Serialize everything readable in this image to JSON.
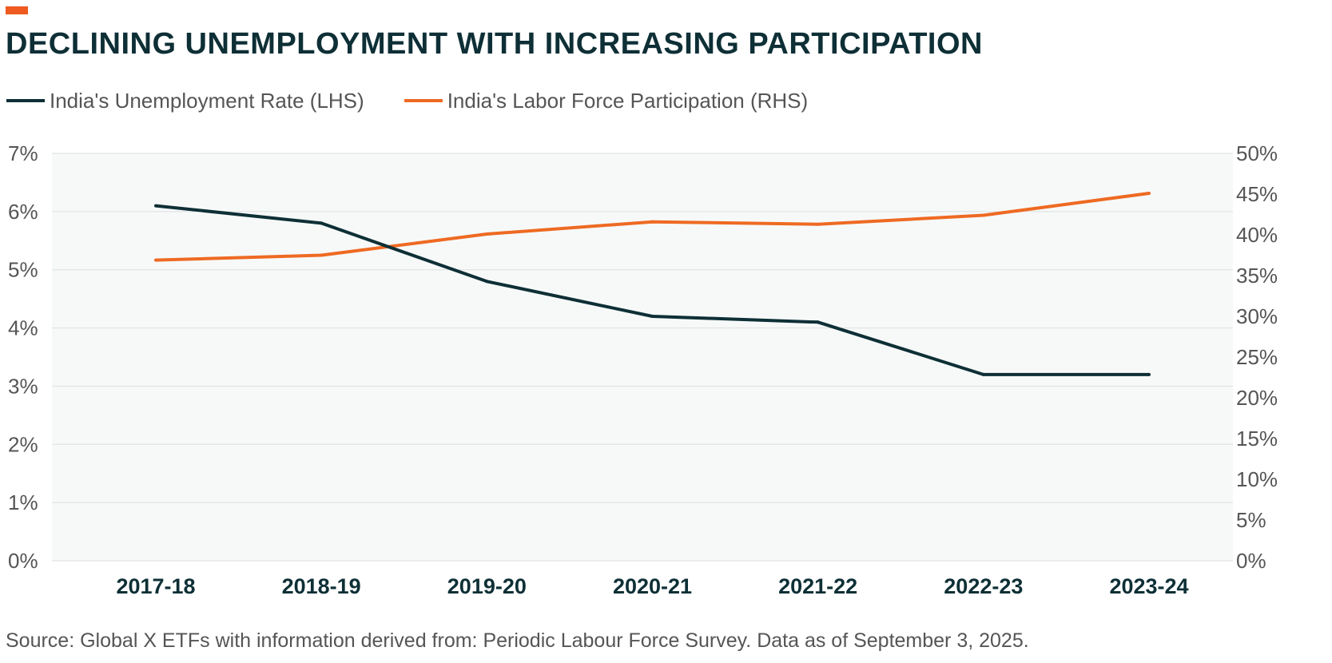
{
  "accent_color": "#ee5a1f",
  "title": "DECLINING UNEMPLOYMENT WITH INCREASING PARTICIPATION",
  "source": "Source: Global X ETFs with information derived from: Periodic Labour Force Survey. Data as of September 3, 2025.",
  "chart_data": {
    "type": "line",
    "title": "DECLINING UNEMPLOYMENT WITH INCREASING PARTICIPATION",
    "categories": [
      "2017-18",
      "2018-19",
      "2019-20",
      "2020-21",
      "2021-22",
      "2022-23",
      "2023-24"
    ],
    "series": [
      {
        "name": "India's Unemployment Rate (LHS)",
        "axis": "left",
        "color": "#0e2f36",
        "values": [
          6.1,
          5.8,
          4.8,
          4.2,
          4.1,
          3.2,
          3.2
        ]
      },
      {
        "name": "India's Labor Force Participation (RHS)",
        "axis": "right",
        "color": "#ee6a22",
        "values": [
          36.9,
          37.5,
          40.1,
          41.6,
          41.3,
          42.4,
          45.1
        ]
      }
    ],
    "y_left": {
      "ylim": [
        0,
        7
      ],
      "ticks": [
        0,
        1,
        2,
        3,
        4,
        5,
        6,
        7
      ],
      "tick_labels": [
        "0%",
        "1%",
        "2%",
        "3%",
        "4%",
        "5%",
        "6%",
        "7%"
      ]
    },
    "y_right": {
      "ylim": [
        0,
        50
      ],
      "ticks": [
        0,
        5,
        10,
        15,
        20,
        25,
        30,
        35,
        40,
        45,
        50
      ],
      "tick_labels": [
        "0%",
        "5%",
        "10%",
        "15%",
        "20%",
        "25%",
        "30%",
        "35%",
        "40%",
        "45%",
        "50%"
      ]
    },
    "grid": true,
    "legend_position": "top-left",
    "plot_background": "#f7f9f9",
    "grid_color": "#dcdfdf"
  }
}
